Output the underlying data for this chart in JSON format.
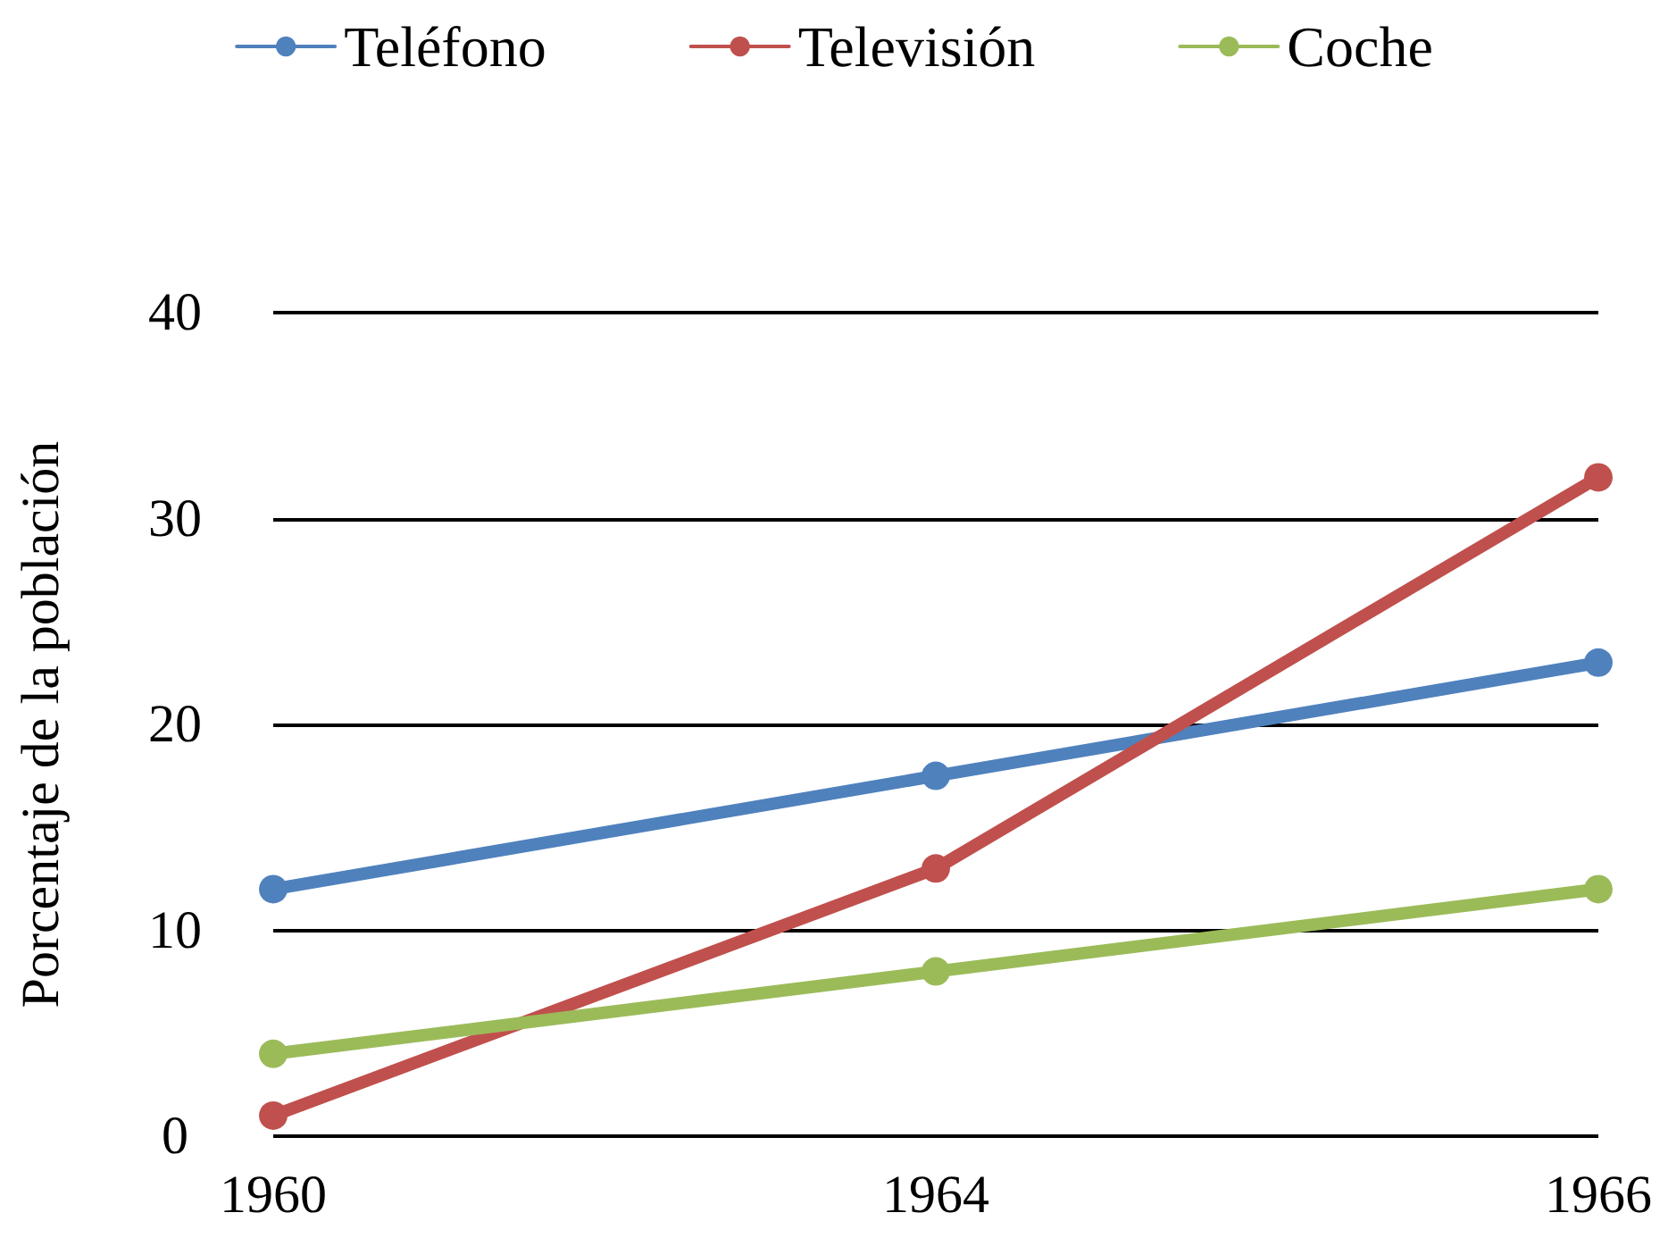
{
  "chart_data": {
    "type": "line",
    "ylabel": "Porcentaje de la población",
    "categories": [
      "1960",
      "1964",
      "1966"
    ],
    "series": [
      {
        "name": "Teléfono",
        "color": "#4f81bd",
        "values": [
          12,
          17.5,
          23
        ]
      },
      {
        "name": "Televisión",
        "color": "#c0504d",
        "values": [
          1,
          13,
          32
        ]
      },
      {
        "name": "Coche",
        "color": "#9bbb59",
        "values": [
          4,
          8,
          12
        ]
      }
    ],
    "ylim": [
      0,
      40
    ],
    "yticks": [
      0,
      10,
      20,
      30,
      40
    ],
    "grid": "y",
    "legend": "top",
    "marker": "circle",
    "line_style": "solid"
  }
}
